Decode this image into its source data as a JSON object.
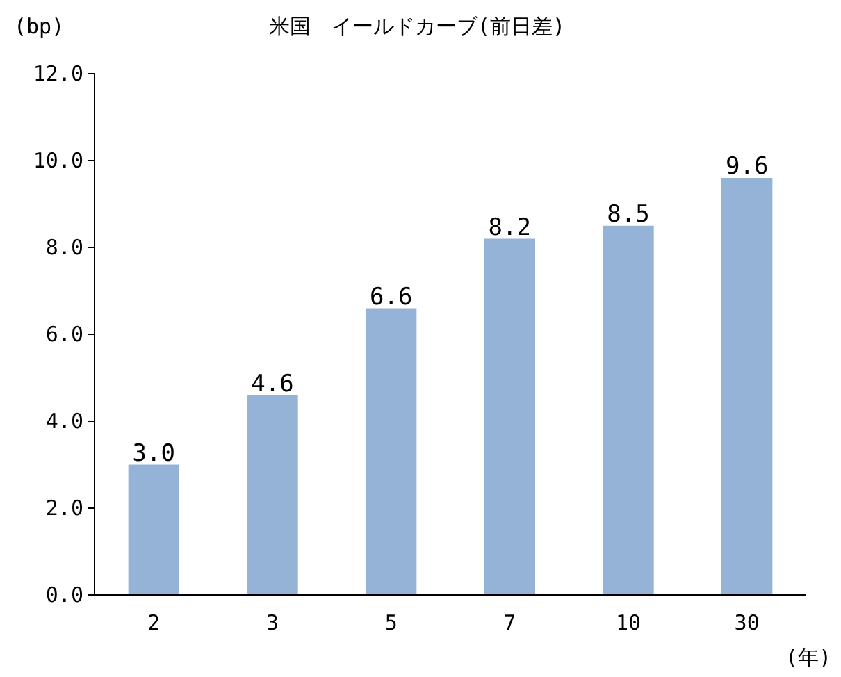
{
  "chart_data": {
    "type": "bar",
    "title": "米国　イールドカーブ(前日差)",
    "ylabel": "(bp)",
    "xlabel": "(年)",
    "categories": [
      "2",
      "3",
      "5",
      "7",
      "10",
      "30"
    ],
    "values": [
      3.0,
      4.6,
      6.6,
      8.2,
      8.5,
      9.6
    ],
    "value_labels": [
      "3.0",
      "4.6",
      "6.6",
      "8.2",
      "8.5",
      "9.6"
    ],
    "color": "#95b3d7",
    "ylim": [
      0,
      12
    ],
    "yticks": [
      {
        "value": 0,
        "label": "0.0"
      },
      {
        "value": 2,
        "label": "2.0"
      },
      {
        "value": 4,
        "label": "4.0"
      },
      {
        "value": 6,
        "label": "6.0"
      },
      {
        "value": 8,
        "label": "8.0"
      },
      {
        "value": 10,
        "label": "10.0"
      },
      {
        "value": 12,
        "label": "12.0"
      }
    ],
    "grid": false
  }
}
